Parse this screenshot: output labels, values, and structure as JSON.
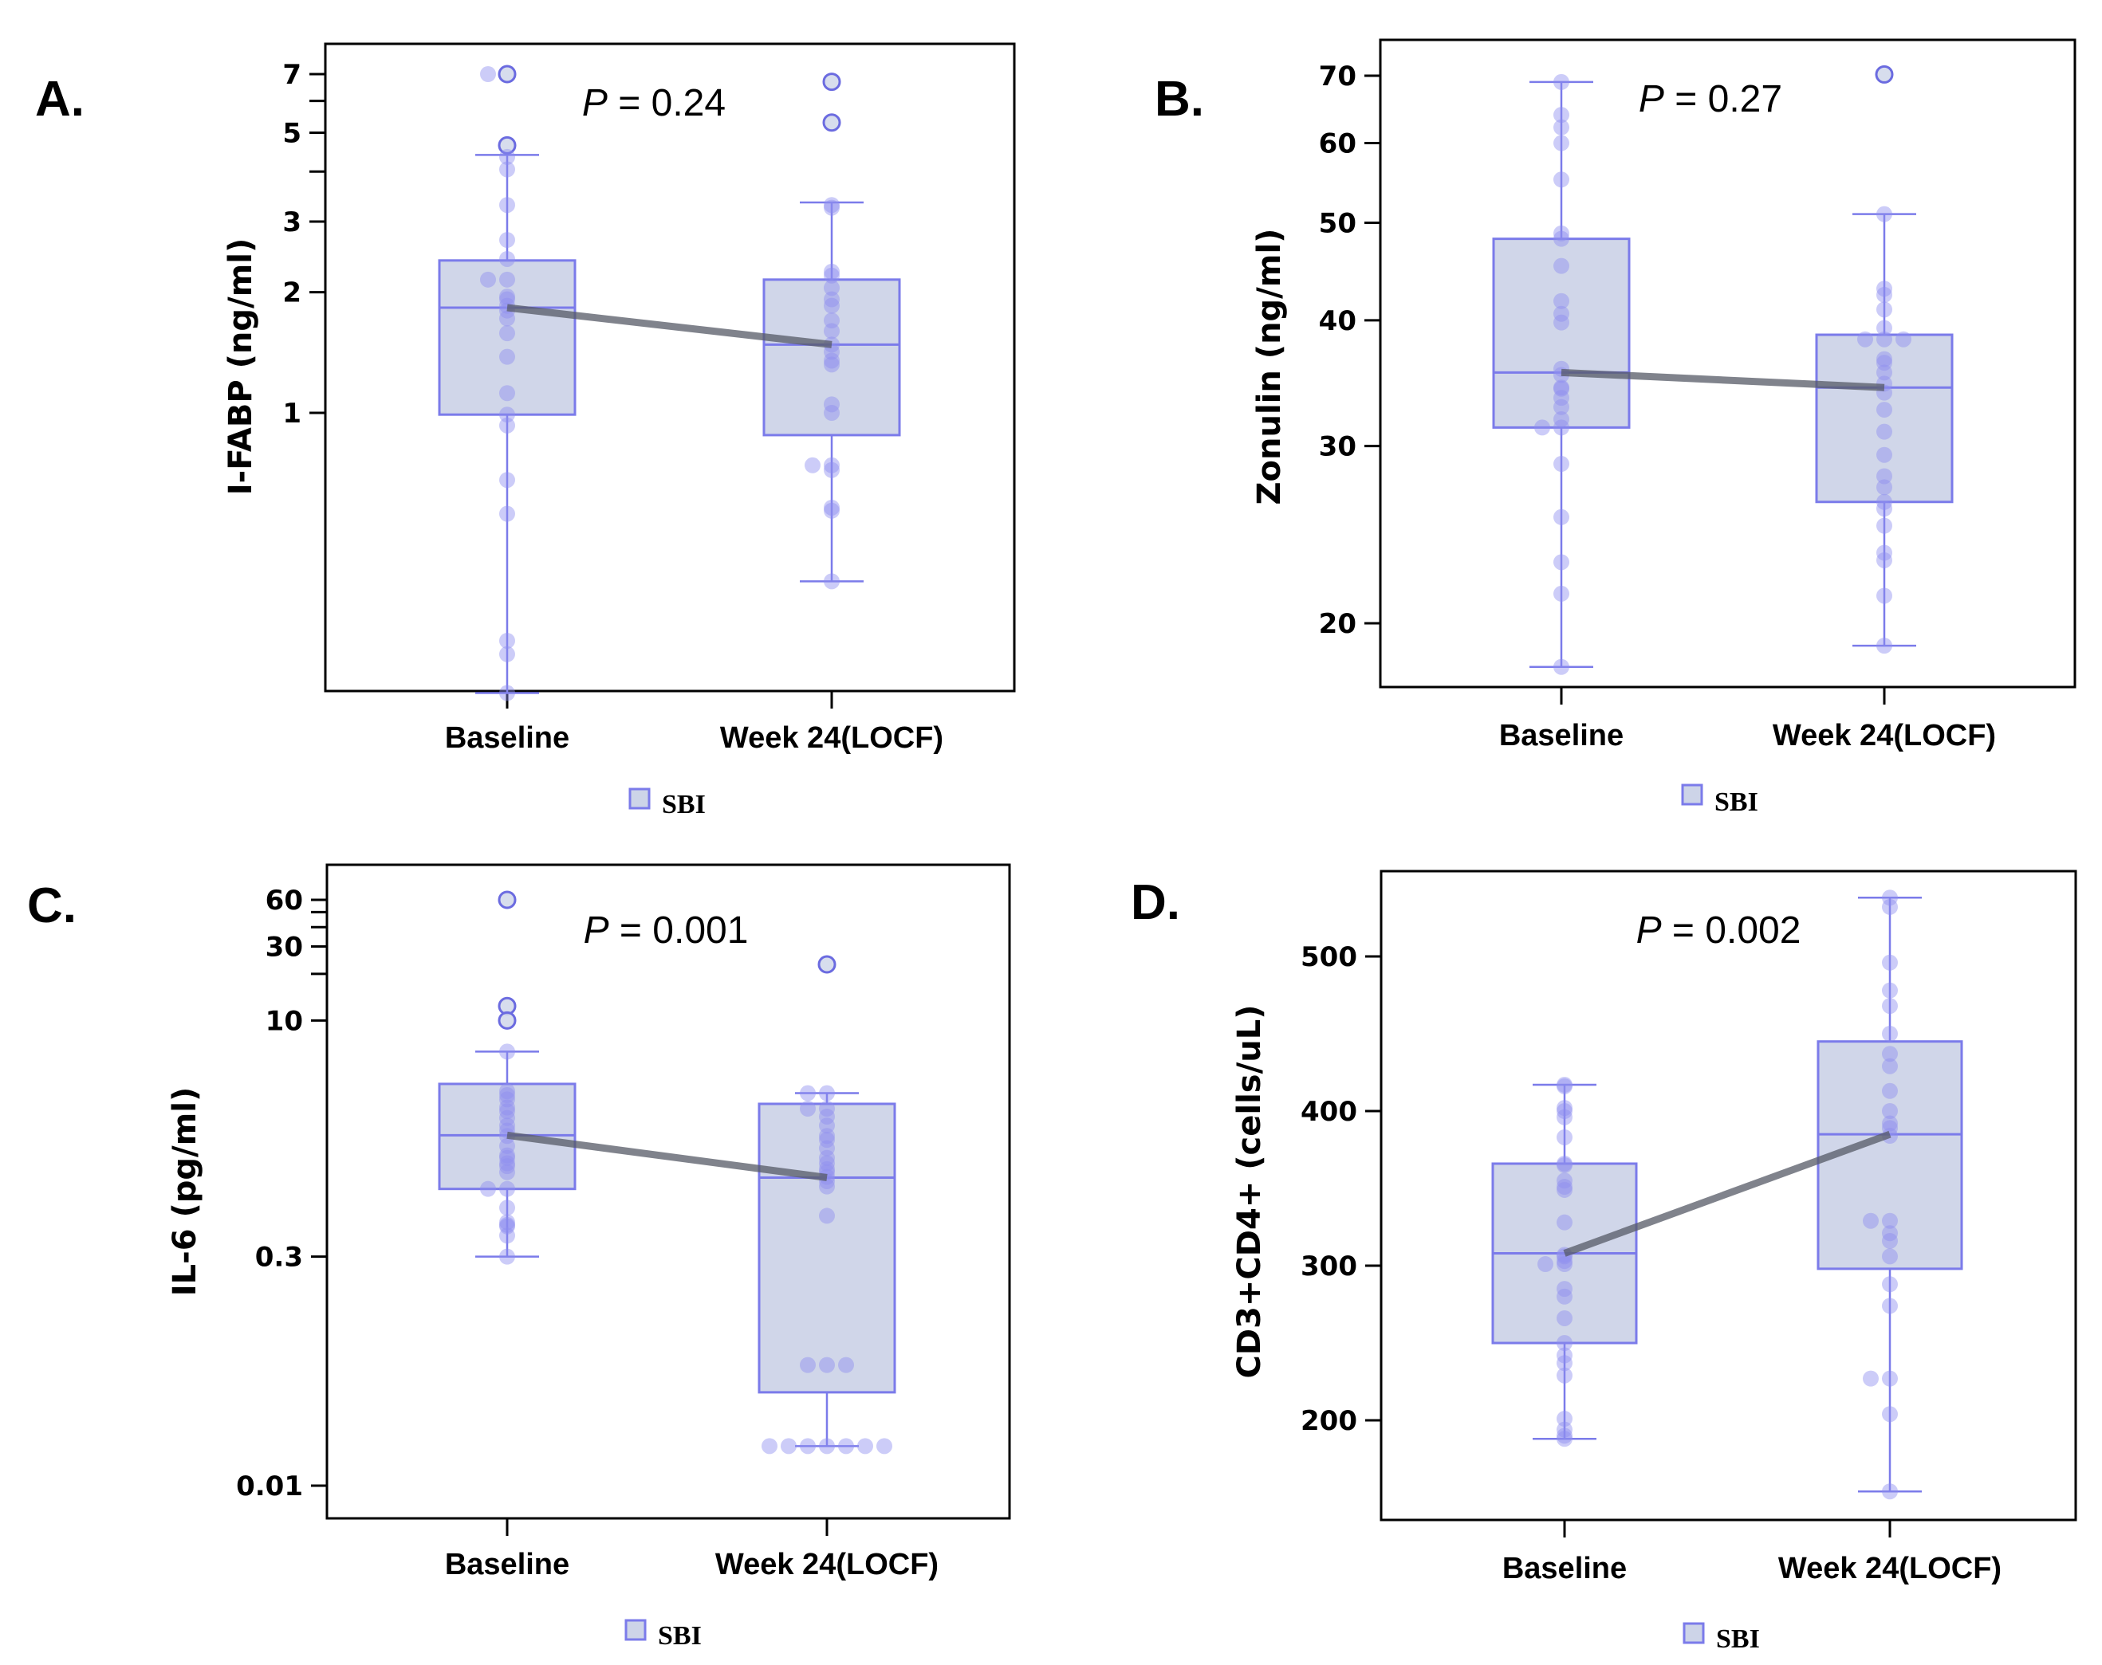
{
  "figure": {
    "legend_label": "SBI",
    "colors": {
      "box_fill": "#cdd4e8",
      "box_stroke": "#7b7bea",
      "point_fill": "#8f8ff0",
      "point_stroke": "#6b6be0",
      "median_line": "#555a66",
      "axis": "#000000"
    }
  },
  "chart_data": [
    {
      "panel": "A.",
      "type": "box",
      "ylabel": "I-FABP (ng/ml)",
      "yscale": "log",
      "ylim": [
        0.18,
        8.5
      ],
      "yticks": [
        1,
        2,
        3,
        4,
        5,
        6,
        7
      ],
      "ytick_labels": [
        "1",
        "2",
        "3",
        "",
        "5",
        "",
        "7"
      ],
      "categories": [
        "Baseline",
        "Week 24(LOCF)"
      ],
      "annotation": "P = 0.24",
      "series": [
        {
          "name": "Baseline",
          "q1": 0.99,
          "median": 1.83,
          "q3": 2.4,
          "whisker_low": 0.2,
          "whisker_high": 4.4,
          "outliers": [
            7.0,
            4.65
          ],
          "points": [
            7.0,
            7.0,
            4.65,
            4.35,
            4.05,
            3.3,
            2.7,
            2.42,
            2.15,
            2.15,
            1.95,
            1.92,
            1.85,
            1.8,
            1.72,
            1.58,
            1.38,
            1.12,
            0.99,
            0.93,
            0.68,
            0.56,
            0.27,
            0.25,
            0.2
          ]
        },
        {
          "name": "Week 24(LOCF)",
          "q1": 0.88,
          "median": 1.48,
          "q3": 2.15,
          "whisker_low": 0.38,
          "whisker_high": 3.35,
          "outliers": [
            6.7,
            5.3
          ],
          "points": [
            6.7,
            5.3,
            3.3,
            3.25,
            2.25,
            2.2,
            2.05,
            1.92,
            1.85,
            1.7,
            1.6,
            1.48,
            1.42,
            1.35,
            1.32,
            1.05,
            1.0,
            0.74,
            0.74,
            0.72,
            0.58,
            0.57,
            0.38
          ]
        }
      ]
    },
    {
      "panel": "B.",
      "type": "box",
      "ylabel": "Zonulin (ng/ml)",
      "yscale": "log",
      "ylim": [
        17.6,
        74
      ],
      "yticks": [
        20,
        30,
        40,
        50,
        60,
        70
      ],
      "ytick_labels": [
        "20",
        "30",
        "40",
        "50",
        "60",
        "70"
      ],
      "categories": [
        "Baseline",
        "Week 24(LOCF)"
      ],
      "annotation": "P = 0.27",
      "series": [
        {
          "name": "Baseline",
          "q1": 31.3,
          "median": 35.5,
          "q3": 48.2,
          "whisker_low": 18.1,
          "whisker_high": 69.0,
          "outliers": [],
          "points": [
            69.0,
            64.0,
            62.2,
            60.0,
            55.2,
            48.8,
            48.2,
            45.3,
            41.8,
            40.6,
            39.8,
            35.8,
            35.3,
            34.2,
            34.3,
            33.5,
            32.8,
            31.9,
            31.3,
            31.3,
            28.8,
            25.5,
            23.0,
            21.4,
            18.1
          ]
        },
        {
          "name": "Week 24(LOCF)",
          "q1": 26.4,
          "median": 34.3,
          "q3": 38.7,
          "whisker_low": 19.0,
          "whisker_high": 51.0,
          "outliers": [
            70.2
          ],
          "points": [
            70.2,
            51.0,
            43.0,
            42.4,
            41.0,
            39.3,
            38.3,
            38.3,
            38.3,
            36.6,
            36.3,
            35.5,
            34.6,
            33.9,
            32.6,
            31.0,
            29.4,
            28.0,
            27.3,
            26.4,
            26.0,
            25.0,
            23.5,
            23.1,
            21.3,
            19.0
          ]
        }
      ]
    },
    {
      "panel": "C.",
      "type": "box",
      "ylabel": "IL-6 (pg/ml)",
      "yscale": "log",
      "ylim": [
        0.0072,
        90
      ],
      "yticks": [
        0.01,
        0.3,
        10,
        20,
        30,
        40,
        50,
        60
      ],
      "ytick_labels": [
        "0.01",
        "0.3",
        "10",
        "",
        "30",
        "",
        "",
        "60"
      ],
      "categories": [
        "Baseline",
        "Week 24(LOCF)"
      ],
      "annotation": "P = 0.001",
      "series": [
        {
          "name": "Baseline",
          "q1": 0.82,
          "median": 1.82,
          "q3": 3.9,
          "whisker_low": 0.3,
          "whisker_high": 6.3,
          "outliers": [
            60,
            12.4,
            10.0
          ],
          "points": [
            60,
            12.4,
            10.0,
            6.3,
            3.5,
            3.3,
            3.1,
            2.75,
            2.6,
            2.35,
            2.1,
            1.8,
            1.95,
            1.55,
            1.3,
            1.35,
            1.2,
            1.15,
            1.05,
            0.82,
            0.82,
            0.62,
            0.5,
            0.48,
            0.47,
            0.41,
            0.3
          ]
        },
        {
          "name": "Week 24(LOCF)",
          "q1": 0.04,
          "median": 0.97,
          "q3": 2.9,
          "whisker_low": 0.018,
          "whisker_high": 3.4,
          "outliers": [
            23
          ],
          "points": [
            23,
            3.4,
            3.4,
            2.7,
            2.7,
            2.4,
            2.1,
            1.8,
            1.7,
            1.5,
            1.3,
            1.2,
            1.1,
            1.05,
            0.98,
            0.92,
            0.85,
            0.55,
            0.06,
            0.06,
            0.06,
            0.018,
            0.018,
            0.018,
            0.018,
            0.018,
            0.018,
            0.018
          ]
        }
      ]
    },
    {
      "panel": "D.",
      "type": "box",
      "ylabel": "CD3+CD4+ (cells/uL)",
      "yscale": "linear",
      "ylim": [
        135,
        555
      ],
      "yticks": [
        200,
        300,
        400,
        500
      ],
      "ytick_labels": [
        "200",
        "300",
        "400",
        "500"
      ],
      "categories": [
        "Baseline",
        "Week 24(LOCF)"
      ],
      "annotation": "P = 0.002",
      "series": [
        {
          "name": "Baseline",
          "q1": 250,
          "median": 308,
          "q3": 366,
          "whisker_low": 188,
          "whisker_high": 417,
          "outliers": [],
          "points": [
            417,
            416,
            402,
            400,
            396,
            383,
            365,
            366,
            355,
            351,
            349,
            328,
            307,
            306,
            303,
            301,
            301,
            285,
            280,
            266,
            250,
            242,
            237,
            229,
            201,
            194,
            190,
            188
          ]
        },
        {
          "name": "Week 24(LOCF)",
          "q1": 298,
          "median": 385,
          "q3": 445,
          "whisker_low": 154,
          "whisker_high": 538,
          "outliers": [],
          "points": [
            538,
            532,
            496,
            478,
            468,
            450,
            437,
            429,
            413,
            400,
            392,
            389,
            384,
            329,
            329,
            321,
            316,
            306,
            288,
            274,
            227,
            227,
            204,
            154
          ]
        }
      ]
    }
  ]
}
